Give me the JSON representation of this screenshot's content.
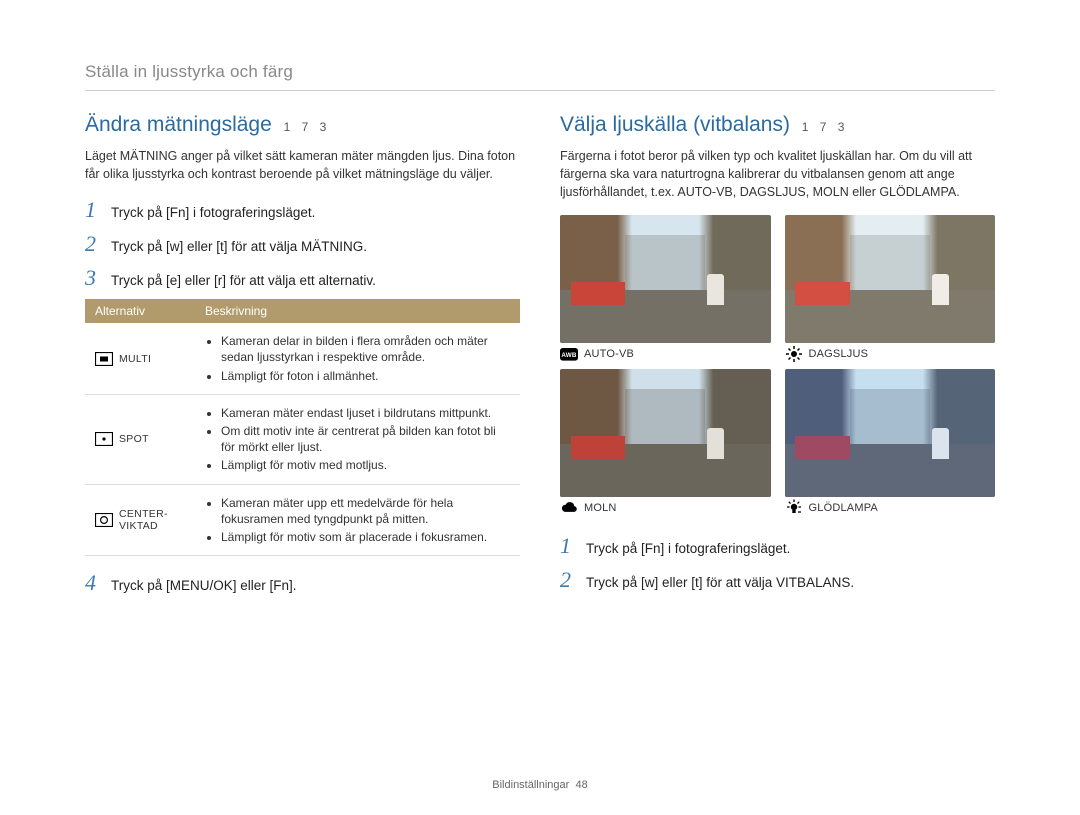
{
  "header": "Ställa in ljusstyrka och färg",
  "footer": {
    "label": "Bildinställningar",
    "page": "48"
  },
  "left": {
    "title": "Ändra mätningsläge",
    "codes": "1 7   3",
    "intro": "Läget MÄTNING anger på vilket sätt kameran mäter mängden ljus. Dina foton får olika ljusstyrka och kontrast beroende på vilket mätningsläge du väljer.",
    "steps": [
      "Tryck på [Fn] i fotograferingsläget.",
      "Tryck på [w] eller [t] för att välja MÄTNING.",
      "Tryck på [e] eller [r] för att välja ett alternativ."
    ],
    "table": {
      "headers": [
        "Alternativ",
        "Beskrivning"
      ],
      "rows": [
        {
          "label": "MULTI",
          "icon": "multi",
          "bullets": [
            "Kameran delar in bilden i flera områden och mäter sedan ljusstyrkan i respektive område.",
            "Lämpligt för foton i allmänhet."
          ]
        },
        {
          "label": "SPOT",
          "icon": "spot",
          "bullets": [
            "Kameran mäter endast ljuset i bildrutans mittpunkt.",
            "Om ditt motiv inte är centrerat på bilden kan fotot bli för mörkt eller ljust.",
            "Lämpligt för motiv med motljus."
          ]
        },
        {
          "label": "CENTER-VIKTAD",
          "icon": "center",
          "bullets": [
            "Kameran mäter upp ett medelvärde för hela fokusramen med tyngdpunkt på mitten.",
            "Lämpligt för motiv som är placerade i fokusramen."
          ]
        }
      ]
    },
    "step4": "Tryck på [MENU/OK] eller [Fn]."
  },
  "right": {
    "title": "Välja ljuskälla (vitbalans)",
    "codes": "1 7   3",
    "intro": "Färgerna i fotot beror på vilken typ och kvalitet ljuskällan har. Om du vill att färgerna ska vara naturtrogna kalibrerar du vitbalansen genom att ange ljusförhållandet, t.ex. AUTO-VB, DAGSLJUS, MOLN eller GLÖDLAMPA.",
    "thumbs": [
      {
        "icon": "awb",
        "label": "AUTO-VB",
        "sky": "#d7e6ee",
        "bl": "#7a6048",
        "br": "#6f6a5a",
        "gr": "#747065",
        "st": "#b9c4c8",
        "aw": "#c9453a",
        "fig": "#e8e6df"
      },
      {
        "icon": "sun",
        "label": "DAGSLJUS",
        "sky": "#e4edf1",
        "bl": "#8a6f54",
        "br": "#7d7665",
        "gr": "#807a6d",
        "st": "#c6cfd2",
        "aw": "#d24f42",
        "fig": "#efede6"
      },
      {
        "icon": "cloud",
        "label": "MOLN",
        "sky": "#cfe0ea",
        "bl": "#6e5743",
        "br": "#645f52",
        "gr": "#6a665c",
        "st": "#aebabf",
        "aw": "#bf4238",
        "fig": "#e2e0d9"
      },
      {
        "icon": "bulb",
        "label": "GLÖDLAMPA",
        "sky": "#c5dfef",
        "bl": "#4f5e7b",
        "br": "#566478",
        "gr": "#5e6878",
        "st": "#a6bdd0",
        "aw": "#9e4a62",
        "fig": "#dbe3ed"
      }
    ],
    "steps": [
      "Tryck på [Fn] i fotograferingsläget.",
      "Tryck på [w] eller [t] för att välja VITBALANS."
    ]
  },
  "colors": {
    "accent": "#2a6aa0",
    "table_header_bg": "#b19a6b"
  }
}
